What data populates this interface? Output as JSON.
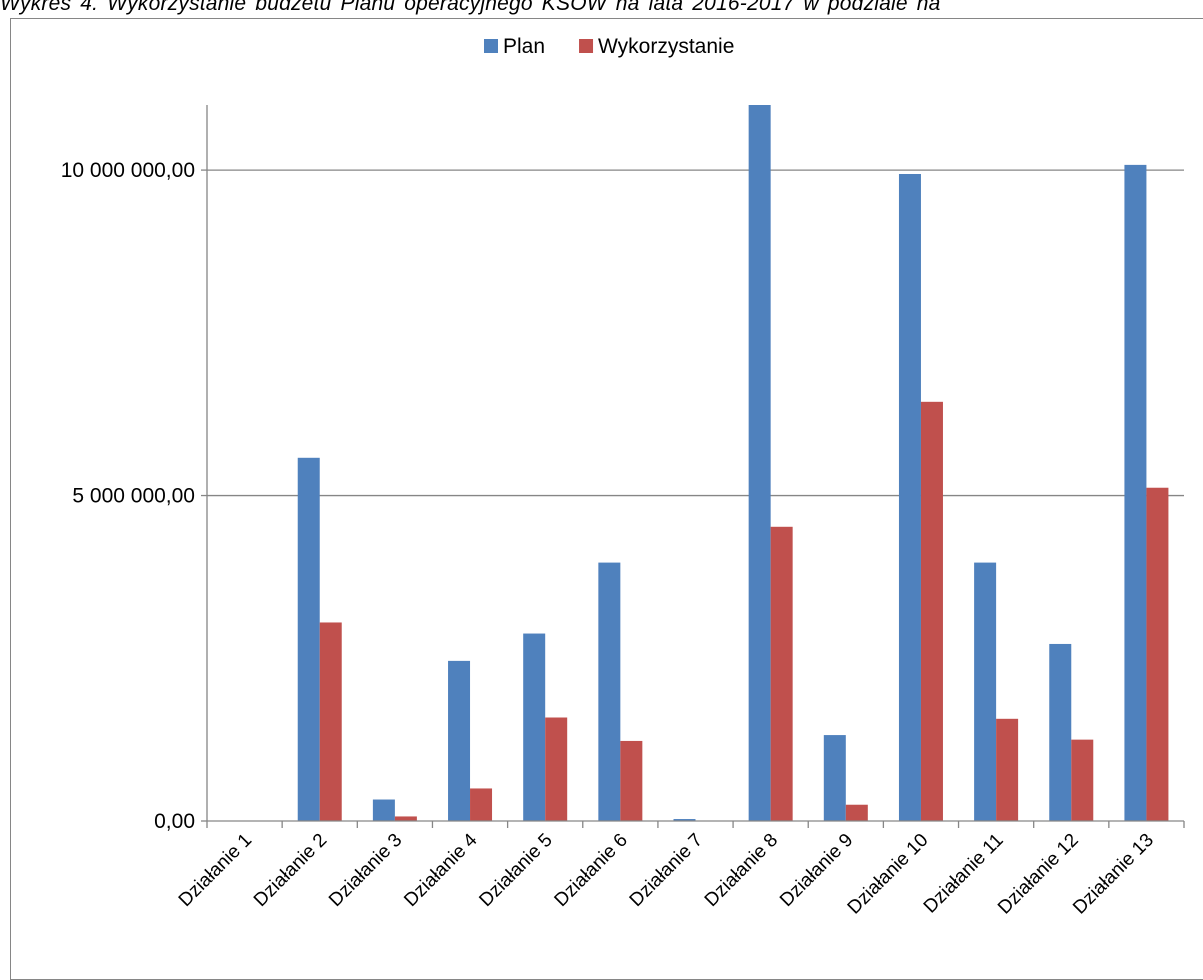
{
  "caption": "Wykres 4. Wykorzystanie budżetu Planu operacyjnego KSOW na lata 2016-2017 w podziale na",
  "colors": {
    "plan": "#4F81BD",
    "wykorzystanie": "#C0504D",
    "grid": "#868686"
  },
  "chart_data": {
    "type": "bar",
    "title": "",
    "xlabel": "",
    "ylabel": "",
    "ylim": [
      0,
      11000000
    ],
    "yticks": [
      0,
      5000000,
      10000000
    ],
    "ytick_labels": [
      "0,00",
      "5 000 000,00",
      "10 000 000,00"
    ],
    "grid": true,
    "legend": "top-center",
    "categories": [
      "Działanie 1",
      "Działanie 2",
      "Działanie 3",
      "Działanie 4",
      "Działanie 5",
      "Działanie 6",
      "Działanie 7",
      "Działanie 8",
      "Działanie 9",
      "Działanie 10",
      "Działanie 11",
      "Działanie 12",
      "Działanie 13"
    ],
    "series": [
      {
        "name": "Plan",
        "color": "#4F81BD",
        "values": [
          0,
          5580000,
          330000,
          2460000,
          2880000,
          3970000,
          30000,
          11000000,
          1320000,
          9940000,
          3970000,
          2720000,
          10080000
        ]
      },
      {
        "name": "Wykorzystanie",
        "color": "#C0504D",
        "values": [
          0,
          3050000,
          70000,
          500000,
          1590000,
          1230000,
          0,
          4520000,
          250000,
          6440000,
          1570000,
          1250000,
          5120000
        ]
      }
    ]
  }
}
